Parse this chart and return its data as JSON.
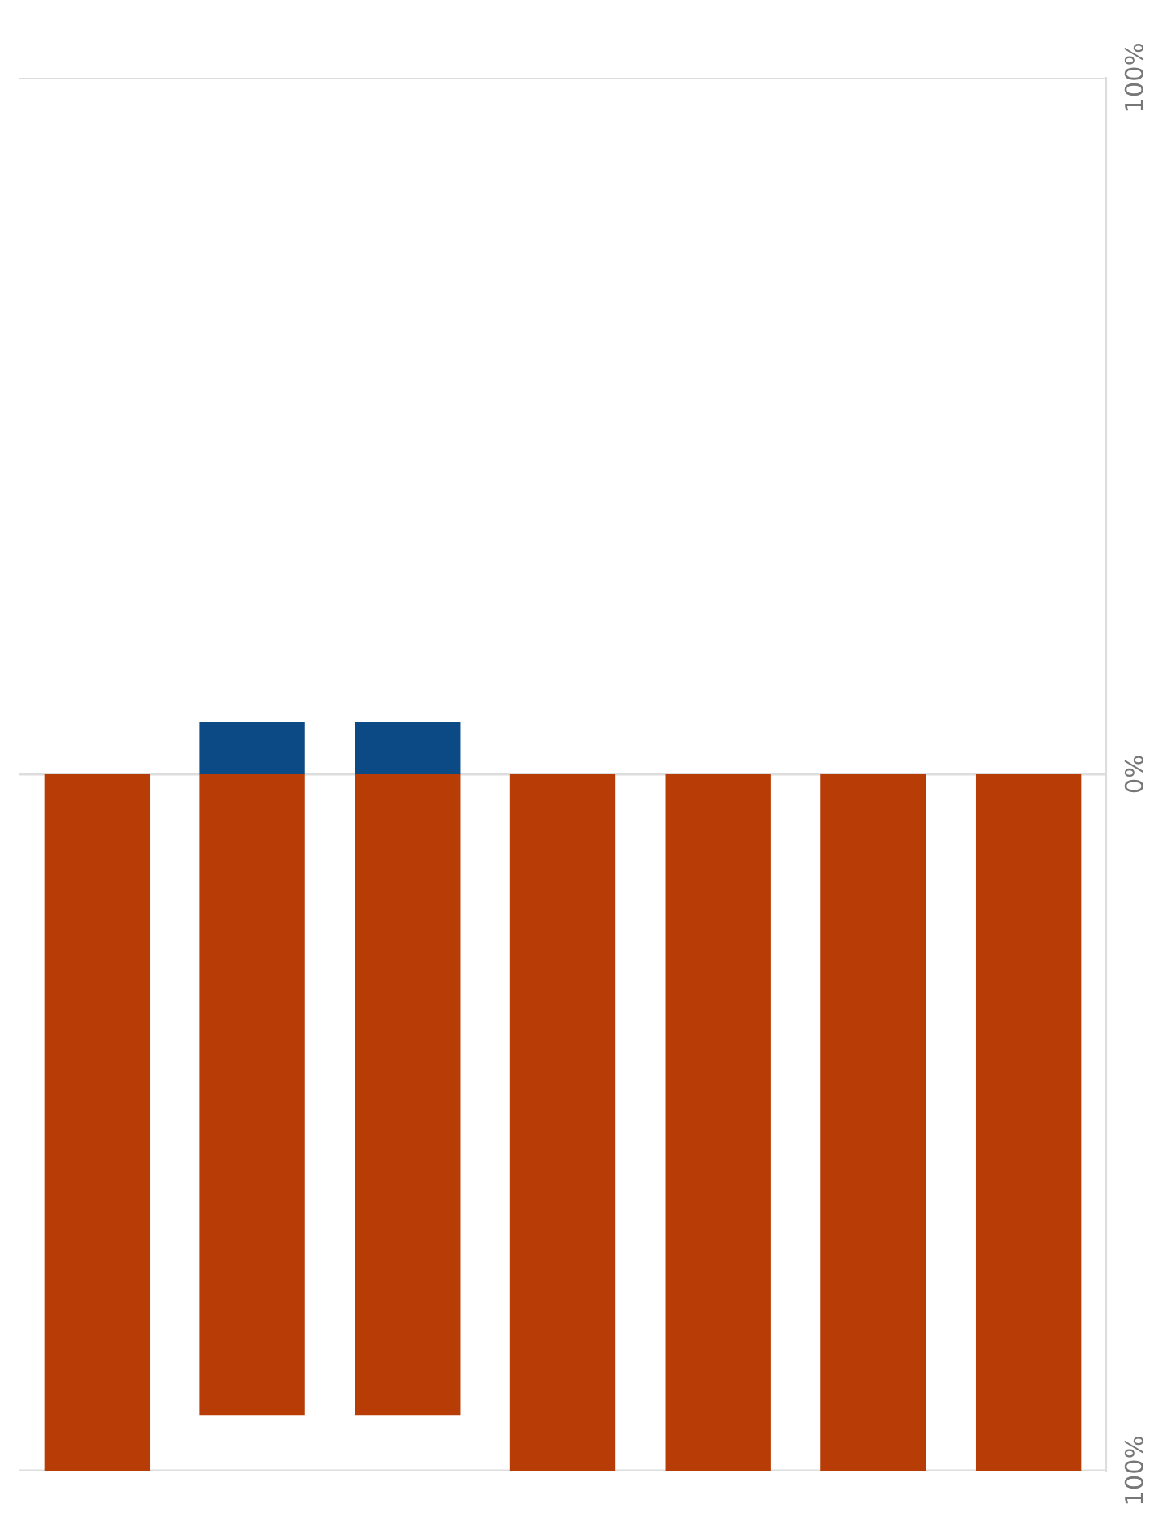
{
  "chart_data": {
    "type": "bar",
    "stacked": true,
    "categories": [
      null,
      null,
      null,
      null,
      null,
      null,
      null
    ],
    "series": [
      {
        "color": "#b83c06",
        "values": [
          -100,
          -92,
          -92,
          -100,
          -100,
          -100,
          -100
        ]
      },
      {
        "color": "#0c4a86",
        "values": [
          null,
          7.5,
          7.5,
          null,
          null,
          null,
          null
        ]
      }
    ],
    "ylim": [
      -100,
      100
    ],
    "yticks": [
      {
        "value": -100,
        "label": "100%"
      },
      {
        "value": 0,
        "label": "0%"
      },
      {
        "value": 100,
        "label": "100%"
      }
    ],
    "grid": "y",
    "legend": false
  }
}
